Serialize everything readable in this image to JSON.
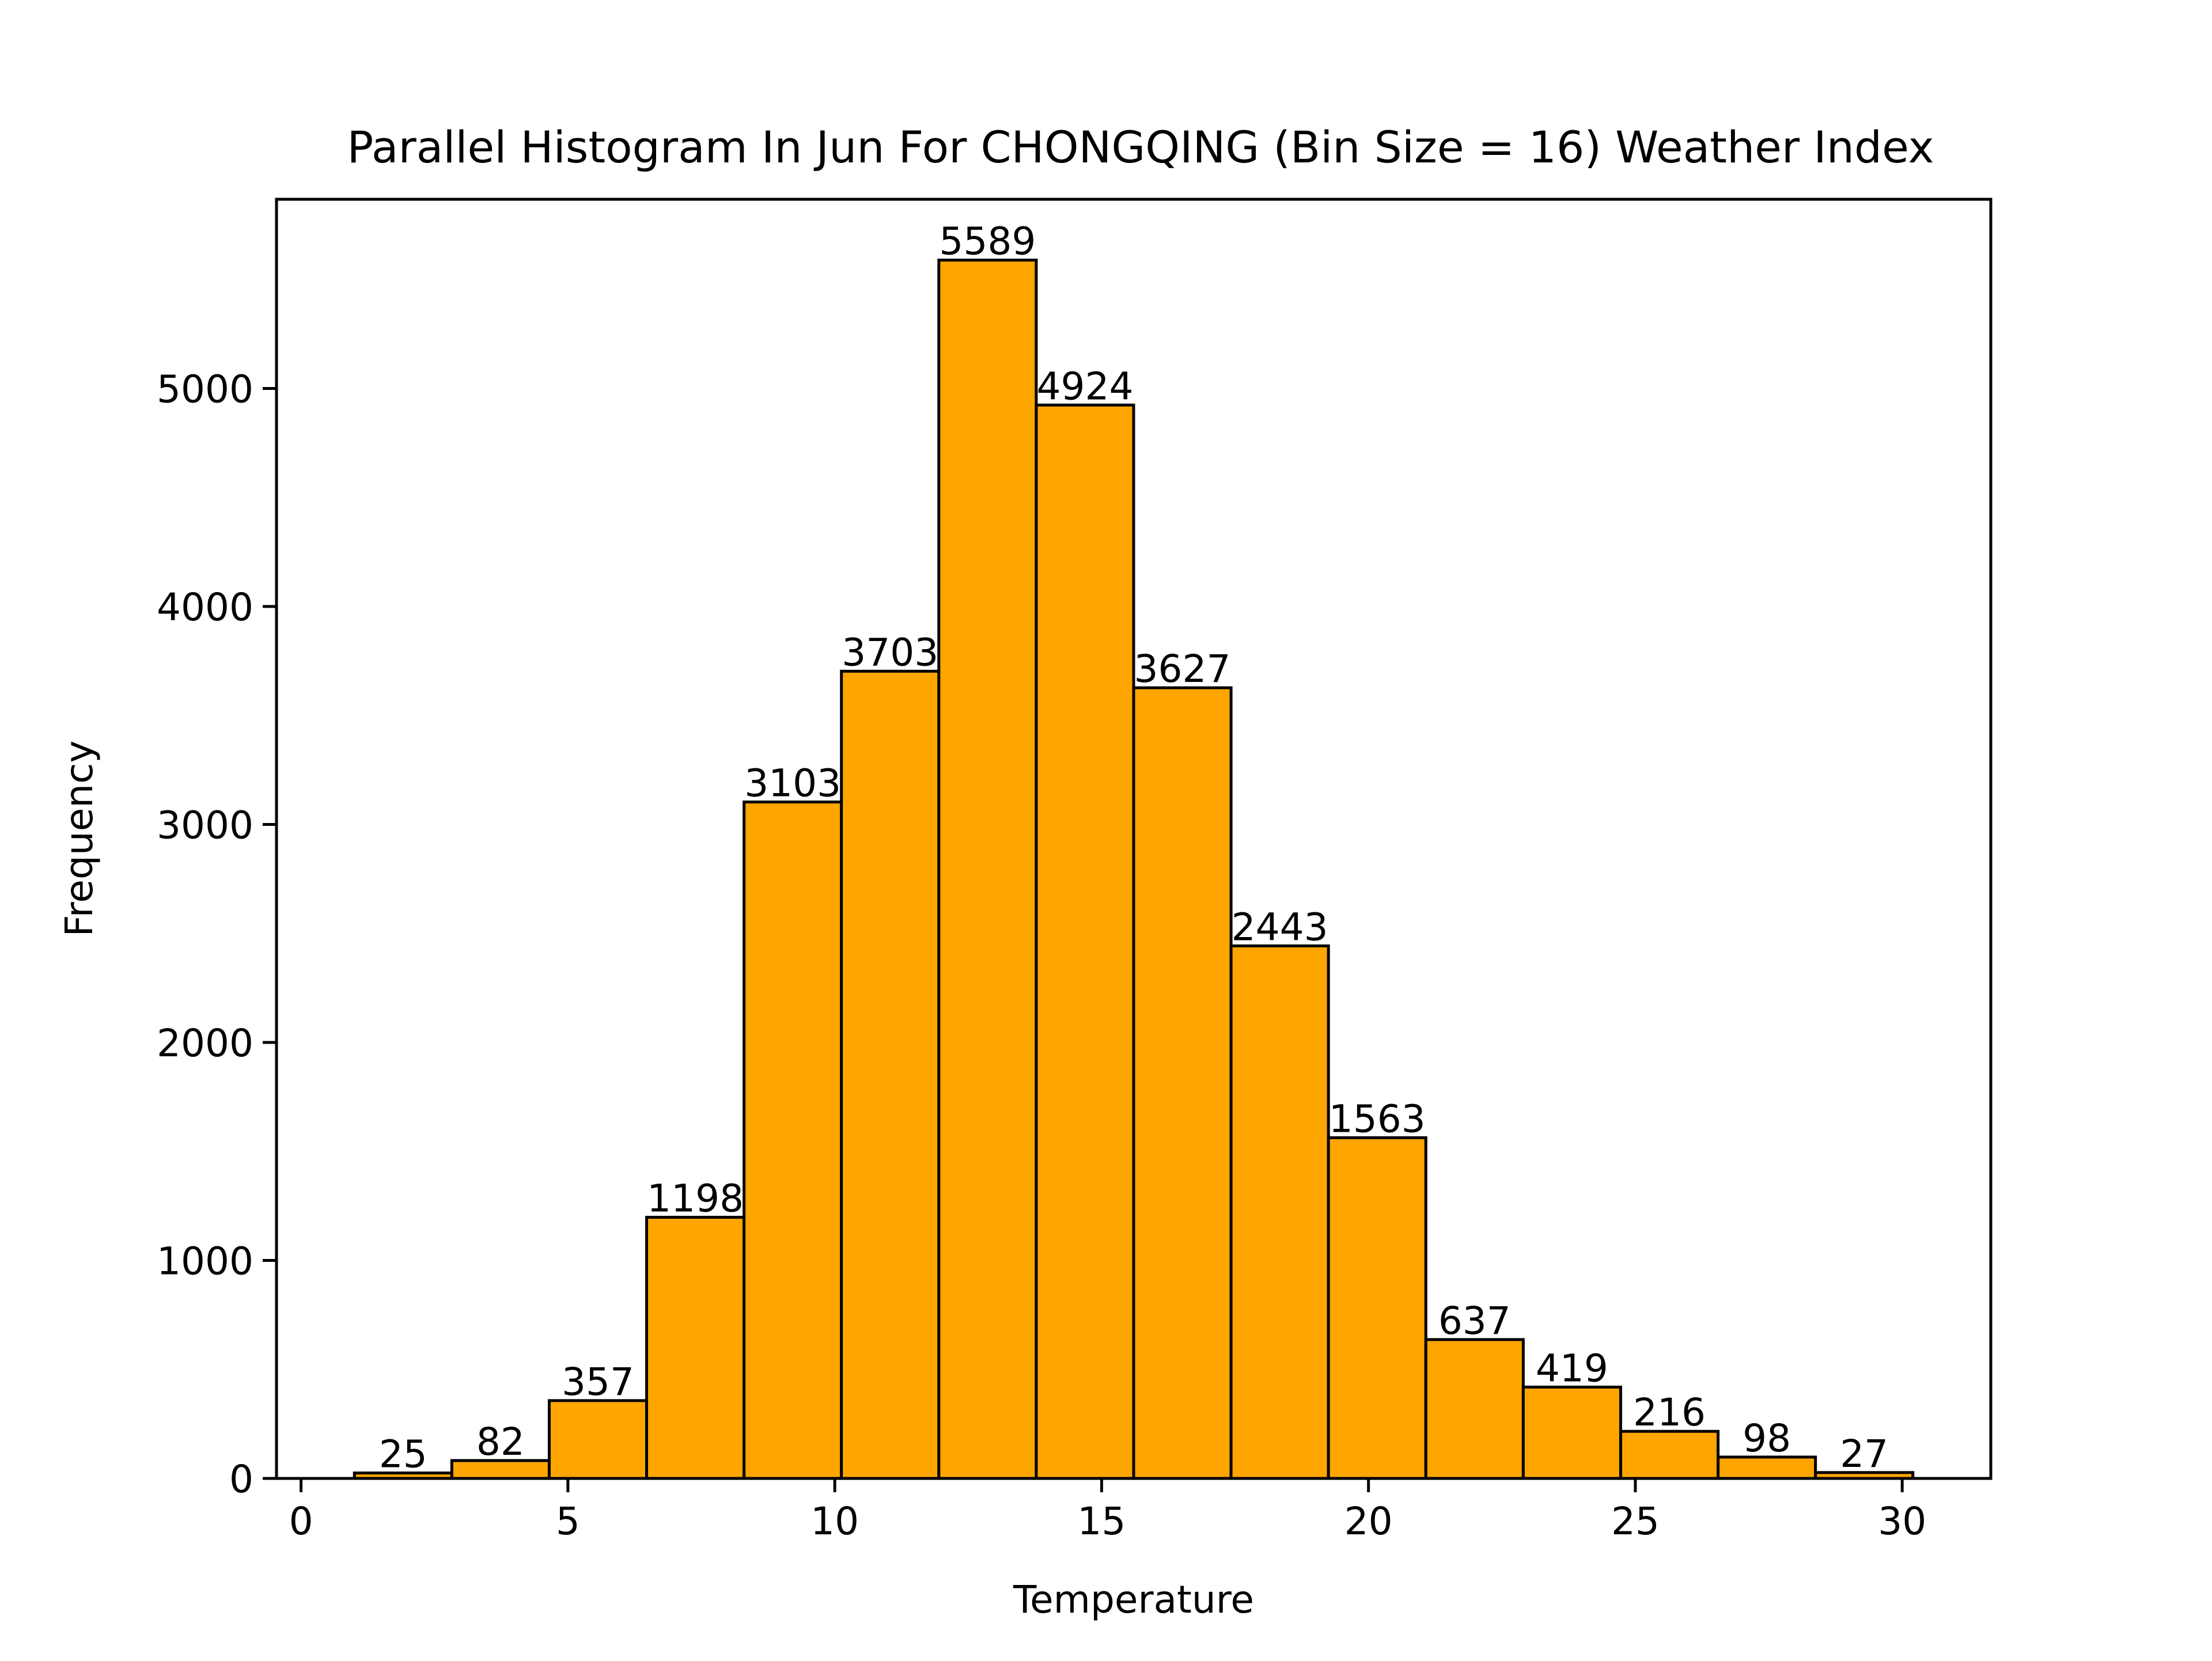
{
  "chart_data": {
    "type": "bar",
    "title": "Parallel Histogram In Jun For CHONGQING (Bin Size = 16) Weather Index",
    "xlabel": "Temperature",
    "ylabel": "Frequency",
    "bin_edges": [
      1.0,
      2.825,
      4.65,
      6.475,
      8.3,
      10.125,
      11.95,
      13.775,
      15.6,
      17.425,
      19.25,
      21.075,
      22.9,
      24.725,
      26.55,
      28.375,
      30.2
    ],
    "values": [
      25,
      82,
      357,
      1198,
      3103,
      3703,
      5589,
      4924,
      3627,
      2443,
      1563,
      637,
      419,
      216,
      98,
      27
    ],
    "value_labels": [
      "25",
      "82",
      "357",
      "1198",
      "3103",
      "3703",
      "5589",
      "4924",
      "3627",
      "2443",
      "1563",
      "637",
      "419",
      "216",
      "98",
      "27"
    ],
    "xlim": [
      -0.46,
      31.66
    ],
    "ylim": [
      0,
      5868
    ],
    "xticks": [
      0,
      5,
      10,
      15,
      20,
      25,
      30
    ],
    "xtick_labels": [
      "0",
      "5",
      "10",
      "15",
      "20",
      "25",
      "30"
    ],
    "yticks": [
      0,
      1000,
      2000,
      3000,
      4000,
      5000
    ],
    "ytick_labels": [
      "0",
      "1000",
      "2000",
      "3000",
      "4000",
      "5000"
    ],
    "bar_color": "#FFA500",
    "edge_color": "#000000",
    "grid": false,
    "legend": "none"
  }
}
